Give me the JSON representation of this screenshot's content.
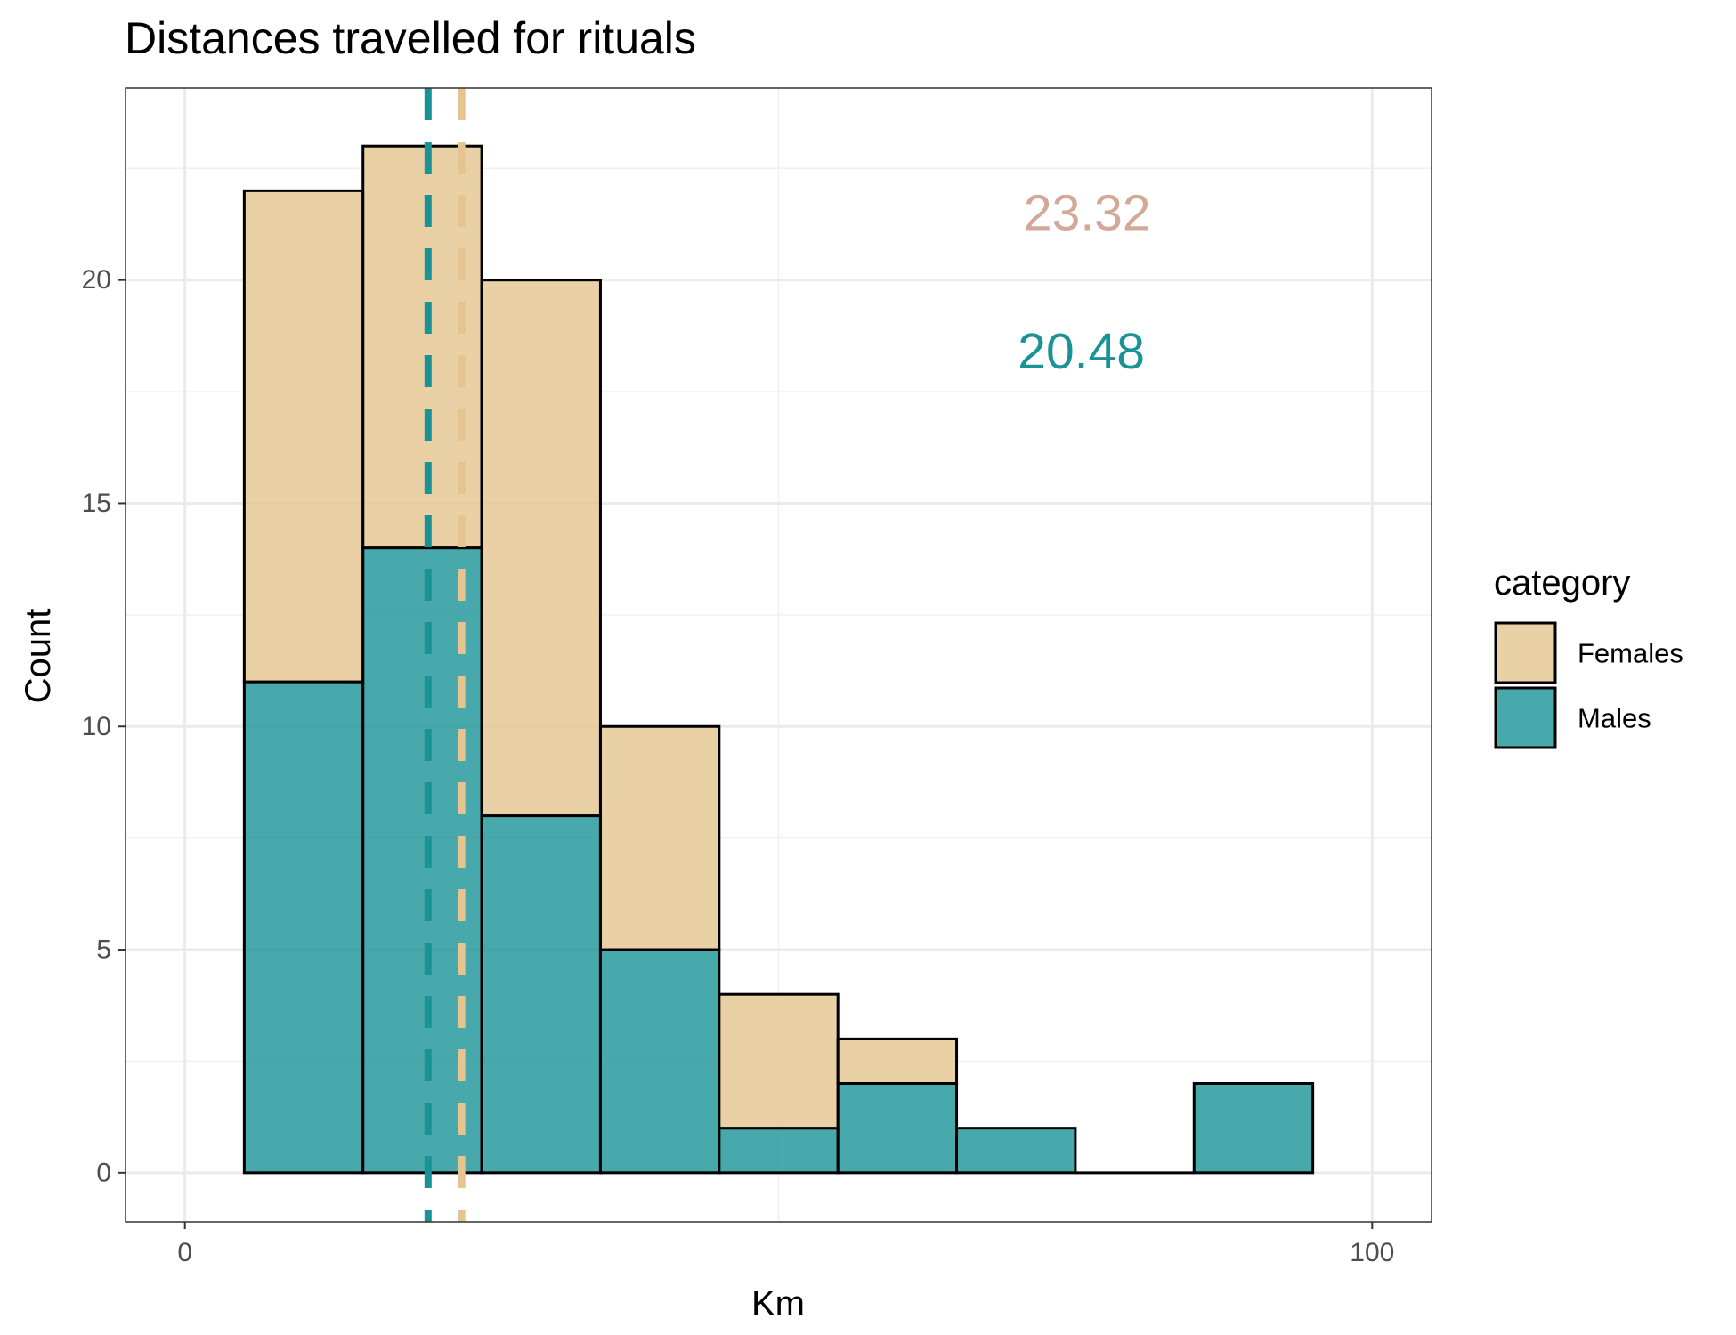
{
  "chart_data": {
    "type": "bar",
    "subtype": "stacked histogram",
    "title": "Distances travelled for rituals",
    "xlabel": "Km",
    "ylabel": "Count",
    "xlim": [
      -5,
      105
    ],
    "ylim": [
      -1.1,
      24.3
    ],
    "x_ticks": [
      0,
      100
    ],
    "y_ticks": [
      0,
      5,
      10,
      15,
      20
    ],
    "grid": true,
    "legend": {
      "title": "category",
      "position": "right"
    },
    "bin_width": 10,
    "bins": [
      {
        "x0": 5,
        "x1": 15
      },
      {
        "x0": 15,
        "x1": 25
      },
      {
        "x0": 25,
        "x1": 35
      },
      {
        "x0": 35,
        "x1": 45
      },
      {
        "x0": 45,
        "x1": 55
      },
      {
        "x0": 55,
        "x1": 65
      },
      {
        "x0": 65,
        "x1": 75
      },
      {
        "x0": 75,
        "x1": 85
      },
      {
        "x0": 85,
        "x1": 95
      }
    ],
    "series": [
      {
        "name": "Males",
        "color": "#1a9397",
        "values": [
          11,
          14,
          8,
          5,
          1,
          2,
          1,
          0,
          2
        ]
      },
      {
        "name": "Females",
        "color": "#e5c48f",
        "values": [
          11,
          9,
          12,
          5,
          3,
          1,
          0,
          0,
          0
        ]
      }
    ],
    "mean_lines": [
      {
        "series": "Males",
        "value": 20.48,
        "color": "#1a9397"
      },
      {
        "series": "Females",
        "value": 23.32,
        "color": "#e5c48f"
      }
    ],
    "annotations": [
      {
        "text": "23.32",
        "x": 76,
        "y": 21.5,
        "color": "#d4a898"
      },
      {
        "text": "20.48",
        "x": 75.5,
        "y": 18.4,
        "color": "#1a9397"
      }
    ]
  }
}
